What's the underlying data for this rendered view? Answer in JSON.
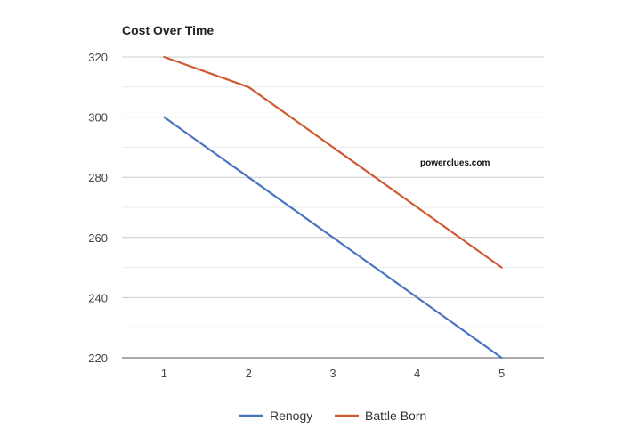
{
  "chart_data": {
    "type": "line",
    "title": "Cost Over Time",
    "xlabel": "",
    "ylabel": "",
    "x": [
      1,
      2,
      3,
      4,
      5
    ],
    "x_tick_labels": [
      "1",
      "2",
      "3",
      "4",
      "5"
    ],
    "ylim": [
      220,
      320
    ],
    "y_ticks": [
      220,
      240,
      260,
      280,
      300,
      320
    ],
    "y_tick_labels": [
      "220",
      "240",
      "260",
      "280",
      "300",
      "320"
    ],
    "grid": true,
    "legend_position": "bottom",
    "series": [
      {
        "name": "Renogy",
        "color": "#4a74bf",
        "values": [
          300,
          280,
          260,
          240,
          220
        ]
      },
      {
        "name": "Battle Born",
        "color": "#cf5a32",
        "values": [
          320,
          310,
          290,
          270,
          250
        ]
      }
    ],
    "annotation": "powerclues.com"
  }
}
